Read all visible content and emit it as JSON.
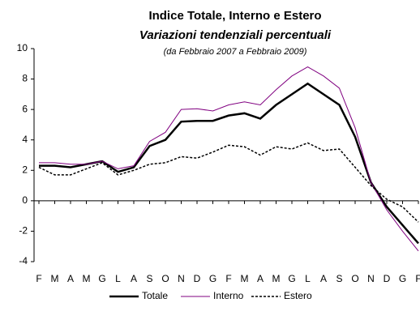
{
  "chart_data": {
    "type": "line",
    "title": "Indice Totale, Interno e Estero",
    "subtitle": "Variazioni tendenziali percentuali",
    "note": "(da Febbraio 2007 a Febbraio 2009)",
    "categories": [
      "F",
      "M",
      "A",
      "M",
      "G",
      "L",
      "A",
      "S",
      "O",
      "N",
      "D",
      "G",
      "F",
      "M",
      "A",
      "M",
      "G",
      "L",
      "A",
      "S",
      "O",
      "N",
      "D",
      "G",
      "F"
    ],
    "series": [
      {
        "name": "Totale",
        "color": "#000000",
        "width": 2.5,
        "line_style": "solid",
        "values": [
          2.3,
          2.3,
          2.2,
          2.4,
          2.6,
          1.9,
          2.2,
          3.6,
          4.0,
          5.2,
          5.25,
          5.25,
          5.6,
          5.75,
          5.4,
          6.3,
          7.0,
          7.7,
          7.0,
          6.3,
          4.2,
          1.2,
          -0.4,
          -1.6,
          -2.8
        ]
      },
      {
        "name": "Interno",
        "color": "#800080",
        "width": 1,
        "line_style": "solid",
        "values": [
          2.5,
          2.5,
          2.4,
          2.4,
          2.6,
          2.1,
          2.3,
          3.9,
          4.5,
          6.0,
          6.05,
          5.9,
          6.3,
          6.5,
          6.3,
          7.3,
          8.2,
          8.8,
          8.2,
          7.4,
          4.8,
          1.2,
          -0.6,
          -2.0,
          -3.3
        ]
      },
      {
        "name": "Estero",
        "color": "#000000",
        "width": 1.5,
        "line_style": "dotted",
        "values": [
          2.2,
          1.7,
          1.7,
          2.1,
          2.5,
          1.7,
          2.0,
          2.4,
          2.5,
          2.9,
          2.8,
          3.2,
          3.65,
          3.55,
          3.0,
          3.55,
          3.4,
          3.8,
          3.3,
          3.4,
          2.2,
          1.0,
          0.1,
          -0.4,
          -1.4
        ]
      }
    ],
    "ylim": [
      -4,
      10
    ],
    "yticks": [
      -4,
      -2,
      0,
      2,
      4,
      6,
      8,
      10
    ],
    "legend": "bottom"
  }
}
